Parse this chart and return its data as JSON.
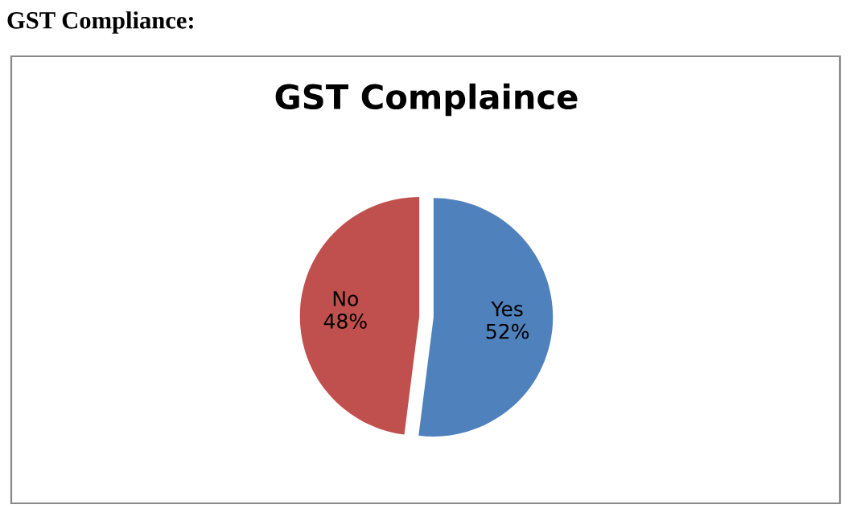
{
  "chart_data": {
    "type": "pie",
    "title": "GST Complaince",
    "annotations": [
      "GST Compliance:"
    ],
    "categories": [
      "Yes",
      "No"
    ],
    "values": [
      52,
      48
    ],
    "colors": [
      "#4f81bd",
      "#c0504d"
    ],
    "value_labels": [
      "52%",
      "48%"
    ],
    "legend": false
  }
}
